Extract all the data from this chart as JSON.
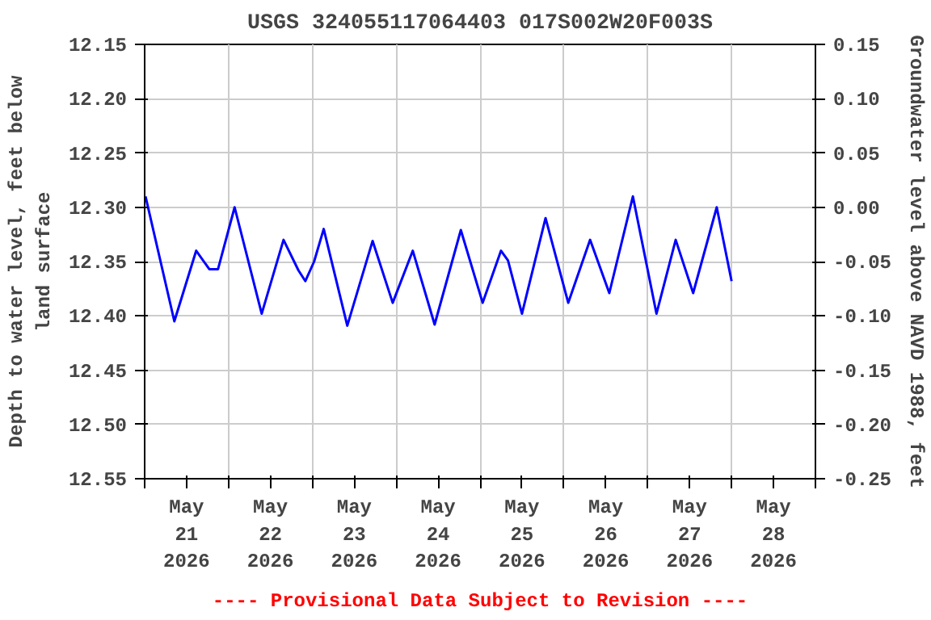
{
  "chart_data": {
    "type": "line",
    "title": "USGS 324055117064403 017S002W20F003S",
    "ylabel": "Depth to water level, feet below land surface",
    "y2label": "Groundwater level above NAVD 1988, feet",
    "annotations": [
      "---- Provisional Data Subject to Revision ----"
    ],
    "x": [
      "2026-05-21T00:15",
      "2026-05-21T08:30",
      "2026-05-21T14:45",
      "2026-05-21T18:30",
      "2026-05-21T21:00",
      "2026-05-22T01:45",
      "2026-05-22T09:30",
      "2026-05-22T15:45",
      "2026-05-22T20:00",
      "2026-05-22T22:00",
      "2026-05-23T00:30",
      "2026-05-23T03:15",
      "2026-05-23T10:00",
      "2026-05-23T17:15",
      "2026-05-23T23:00",
      "2026-05-24T04:45",
      "2026-05-24T11:00",
      "2026-05-24T18:30",
      "2026-05-25T00:45",
      "2026-05-25T06:00",
      "2026-05-25T08:00",
      "2026-05-25T12:00",
      "2026-05-25T18:45",
      "2026-05-26T01:15",
      "2026-05-26T07:30",
      "2026-05-26T13:00",
      "2026-05-26T19:45",
      "2026-05-27T02:30",
      "2026-05-27T08:00",
      "2026-05-27T13:00",
      "2026-05-27T19:45",
      "2026-05-28T00:00"
    ],
    "series": [
      {
        "color": "#0000ff",
        "values": [
          12.29,
          12.405,
          12.34,
          12.357,
          12.357,
          12.3,
          12.398,
          12.33,
          12.358,
          12.368,
          12.35,
          12.32,
          12.409,
          12.331,
          12.388,
          12.34,
          12.408,
          12.321,
          12.388,
          12.34,
          12.349,
          12.398,
          12.31,
          12.388,
          12.33,
          12.379,
          12.29,
          12.398,
          12.33,
          12.379,
          12.3,
          12.368
        ]
      }
    ],
    "xlim": [
      "2026-05-21T00:00",
      "2026-05-29T00:00"
    ],
    "xticks": [
      {
        "value": "2026-05-21T00:00",
        "label": null
      },
      {
        "value": "2026-05-21T12:00",
        "label": "May\n21\n2026"
      },
      {
        "value": "2026-05-22T00:00",
        "label": null
      },
      {
        "value": "2026-05-22T12:00",
        "label": "May\n22\n2026"
      },
      {
        "value": "2026-05-23T00:00",
        "label": null
      },
      {
        "value": "2026-05-23T12:00",
        "label": "May\n23\n2026"
      },
      {
        "value": "2026-05-24T00:00",
        "label": null
      },
      {
        "value": "2026-05-24T12:00",
        "label": "May\n24\n2026"
      },
      {
        "value": "2026-05-25T00:00",
        "label": null
      },
      {
        "value": "2026-05-25T12:00",
        "label": "May\n25\n2026"
      },
      {
        "value": "2026-05-26T00:00",
        "label": null
      },
      {
        "value": "2026-05-26T12:00",
        "label": "May\n26\n2026"
      },
      {
        "value": "2026-05-27T00:00",
        "label": null
      },
      {
        "value": "2026-05-27T12:00",
        "label": "May\n27\n2026"
      },
      {
        "value": "2026-05-28T00:00",
        "label": null
      },
      {
        "value": "2026-05-28T12:00",
        "label": "May\n28\n2026"
      },
      {
        "value": "2026-05-29T00:00",
        "label": null
      }
    ],
    "ylim": [
      12.55,
      12.15
    ],
    "yticks": [
      {
        "value": 12.15,
        "label": "12.15"
      },
      {
        "value": 12.2,
        "label": "12.20"
      },
      {
        "value": 12.25,
        "label": "12.25"
      },
      {
        "value": 12.3,
        "label": "12.30"
      },
      {
        "value": 12.35,
        "label": "12.35"
      },
      {
        "value": 12.4,
        "label": "12.40"
      },
      {
        "value": 12.45,
        "label": "12.45"
      },
      {
        "value": 12.5,
        "label": "12.50"
      },
      {
        "value": 12.55,
        "label": "12.55"
      }
    ],
    "y2lim": [
      -0.25,
      0.15
    ],
    "y2ticks": [
      {
        "value": 0.15,
        "label": "0.15"
      },
      {
        "value": 0.1,
        "label": "0.10"
      },
      {
        "value": 0.05,
        "label": "0.05"
      },
      {
        "value": 0.0,
        "label": "0.00"
      },
      {
        "value": -0.05,
        "label": "-0.05"
      },
      {
        "value": -0.1,
        "label": "-0.10"
      },
      {
        "value": -0.15,
        "label": "-0.15"
      },
      {
        "value": -0.2,
        "label": "-0.20"
      },
      {
        "value": -0.25,
        "label": "-0.25"
      }
    ],
    "grid": true,
    "marker": "none",
    "line_style": "solid"
  }
}
